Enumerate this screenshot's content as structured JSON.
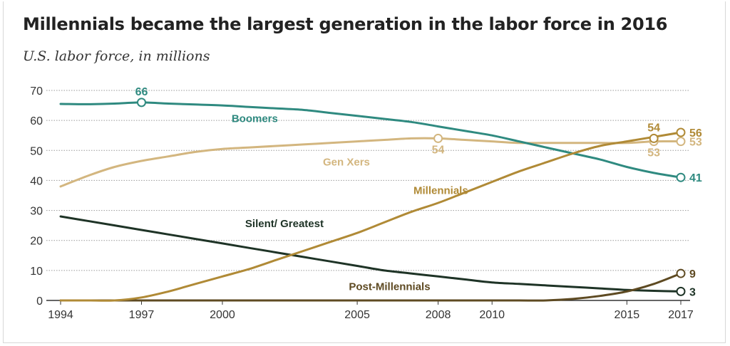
{
  "title": "Millennials became the largest generation in the labor force in 2016",
  "subtitle": "U.S. labor force, in millions",
  "colors": {
    "boomers": "#2f8a80",
    "genx": "#d3b67f",
    "millennials": "#b08a36",
    "silent": "#1e3326",
    "post": "#5e4a22",
    "grid": "#9a9a9a",
    "axis": "#333333"
  },
  "chart_data": {
    "type": "line",
    "title": "Millennials became the largest generation in the labor force in 2016",
    "ylabel": "",
    "xlabel": "",
    "ylim": [
      0,
      70
    ],
    "xlim": [
      1994,
      2017
    ],
    "yticks": [
      0,
      10,
      20,
      30,
      40,
      50,
      60,
      70
    ],
    "xticks": [
      1994,
      1997,
      2000,
      2005,
      2008,
      2010,
      2015,
      2017
    ],
    "grid": true,
    "legend": "inline labels",
    "series": [
      {
        "name": "Boomers",
        "color_key": "boomers",
        "points": [
          [
            1994,
            65.5
          ],
          [
            1995,
            65.4
          ],
          [
            1996,
            65.6
          ],
          [
            1997,
            66
          ],
          [
            1998,
            65.6
          ],
          [
            1999,
            65.3
          ],
          [
            2000,
            65
          ],
          [
            2001,
            64.5
          ],
          [
            2002,
            64
          ],
          [
            2003,
            63.5
          ],
          [
            2004,
            62.5
          ],
          [
            2005,
            61.5
          ],
          [
            2006,
            60.5
          ],
          [
            2007,
            59.5
          ],
          [
            2008,
            58
          ],
          [
            2009,
            56.5
          ],
          [
            2010,
            55
          ],
          [
            2011,
            53
          ],
          [
            2012,
            51
          ],
          [
            2013,
            49
          ],
          [
            2014,
            47
          ],
          [
            2015,
            44.5
          ],
          [
            2016,
            42.5
          ],
          [
            2017,
            41
          ]
        ],
        "labels": [
          {
            "x": 1997,
            "y": 66,
            "text": "66",
            "pos": "above"
          },
          {
            "x": 2017,
            "y": 41,
            "text": "41",
            "pos": "right"
          }
        ]
      },
      {
        "name": "Gen Xers",
        "color_key": "genx",
        "points": [
          [
            1994,
            38
          ],
          [
            1995,
            41.5
          ],
          [
            1996,
            44.5
          ],
          [
            1997,
            46.5
          ],
          [
            1998,
            48
          ],
          [
            1999,
            49.5
          ],
          [
            2000,
            50.5
          ],
          [
            2001,
            51
          ],
          [
            2002,
            51.5
          ],
          [
            2003,
            52
          ],
          [
            2004,
            52.5
          ],
          [
            2005,
            53
          ],
          [
            2006,
            53.5
          ],
          [
            2007,
            54
          ],
          [
            2008,
            54
          ],
          [
            2009,
            53.5
          ],
          [
            2010,
            53
          ],
          [
            2011,
            52.5
          ],
          [
            2012,
            52.5
          ],
          [
            2013,
            52.5
          ],
          [
            2014,
            52.5
          ],
          [
            2015,
            52.5
          ],
          [
            2016,
            53
          ],
          [
            2017,
            53
          ]
        ],
        "labels": [
          {
            "x": 2008,
            "y": 54,
            "text": "54",
            "pos": "below"
          },
          {
            "x": 2016,
            "y": 53,
            "text": "53",
            "pos": "below"
          },
          {
            "x": 2017,
            "y": 53,
            "text": "53",
            "pos": "right"
          }
        ]
      },
      {
        "name": "Millennials",
        "color_key": "millennials",
        "points": [
          [
            1994,
            0
          ],
          [
            1995,
            0
          ],
          [
            1996,
            0
          ],
          [
            1997,
            1
          ],
          [
            1998,
            3
          ],
          [
            1999,
            5.5
          ],
          [
            2000,
            8
          ],
          [
            2001,
            10.5
          ],
          [
            2002,
            13.5
          ],
          [
            2003,
            16.5
          ],
          [
            2004,
            19.5
          ],
          [
            2005,
            22.5
          ],
          [
            2006,
            26
          ],
          [
            2007,
            29.5
          ],
          [
            2008,
            32.5
          ],
          [
            2009,
            36
          ],
          [
            2010,
            39.5
          ],
          [
            2011,
            43
          ],
          [
            2012,
            46
          ],
          [
            2013,
            49
          ],
          [
            2014,
            51.5
          ],
          [
            2015,
            53
          ],
          [
            2016,
            54.5
          ],
          [
            2017,
            56
          ]
        ],
        "labels": [
          {
            "x": 2016,
            "y": 54,
            "text": "54",
            "pos": "above"
          },
          {
            "x": 2017,
            "y": 56,
            "text": "56",
            "pos": "right"
          }
        ]
      },
      {
        "name": "Silent/ Greatest",
        "color_key": "silent",
        "points": [
          [
            1994,
            28
          ],
          [
            1995,
            26.5
          ],
          [
            1996,
            25
          ],
          [
            1997,
            23.5
          ],
          [
            1998,
            22
          ],
          [
            1999,
            20.5
          ],
          [
            2000,
            19
          ],
          [
            2001,
            17.5
          ],
          [
            2002,
            16
          ],
          [
            2003,
            14.5
          ],
          [
            2004,
            13
          ],
          [
            2005,
            11.5
          ],
          [
            2006,
            10
          ],
          [
            2007,
            9
          ],
          [
            2008,
            8
          ],
          [
            2009,
            7
          ],
          [
            2010,
            6
          ],
          [
            2011,
            5.5
          ],
          [
            2012,
            5
          ],
          [
            2013,
            4.5
          ],
          [
            2014,
            4
          ],
          [
            2015,
            3.5
          ],
          [
            2016,
            3.2
          ],
          [
            2017,
            3
          ]
        ],
        "labels": [
          {
            "x": 2017,
            "y": 3,
            "text": "3",
            "pos": "right"
          }
        ]
      },
      {
        "name": "Post-Millennials",
        "color_key": "post",
        "points": [
          [
            1994,
            0
          ],
          [
            1995,
            0
          ],
          [
            1996,
            0
          ],
          [
            1997,
            0
          ],
          [
            1998,
            0
          ],
          [
            1999,
            0
          ],
          [
            2000,
            0
          ],
          [
            2001,
            0
          ],
          [
            2002,
            0
          ],
          [
            2003,
            0
          ],
          [
            2004,
            0
          ],
          [
            2005,
            0
          ],
          [
            2006,
            0
          ],
          [
            2007,
            0
          ],
          [
            2008,
            0
          ],
          [
            2009,
            0
          ],
          [
            2010,
            0
          ],
          [
            2011,
            0
          ],
          [
            2012,
            0
          ],
          [
            2013,
            0.5
          ],
          [
            2014,
            1.5
          ],
          [
            2015,
            3
          ],
          [
            2016,
            5.5
          ],
          [
            2017,
            9
          ]
        ],
        "labels": [
          {
            "x": 2017,
            "y": 9,
            "text": "9",
            "pos": "right"
          }
        ]
      }
    ],
    "series_labels": [
      {
        "text": "Boomers",
        "x": 2001.2,
        "y": 59.5,
        "color_key": "boomers"
      },
      {
        "text": "Gen Xers",
        "x": 2004.6,
        "y": 45,
        "color_key": "genx"
      },
      {
        "text": "Millennials",
        "x": 2008.1,
        "y": 35.5,
        "color_key": "millennials"
      },
      {
        "text": "Silent/ Greatest",
        "x": 2002.3,
        "y": 24.5,
        "color_key": "silent"
      },
      {
        "text": "Post-Millennials",
        "x": 2006.2,
        "y": 3.5,
        "color_key": "post"
      }
    ]
  }
}
